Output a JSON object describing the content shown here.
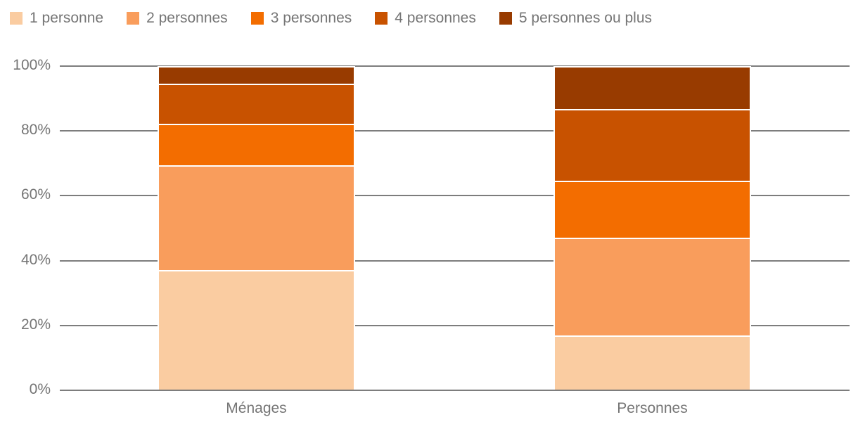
{
  "chart_data": {
    "type": "bar",
    "stacked": true,
    "stack_mode": "percent",
    "title": "",
    "xlabel": "",
    "ylabel": "",
    "categories": [
      "Ménages",
      "Personnes"
    ],
    "series": [
      {
        "name": "1 personne",
        "color": "#FACCA1",
        "values": [
          37.1,
          16.9
        ]
      },
      {
        "name": "2 personnes",
        "color": "#F99D5C",
        "values": [
          32.3,
          30.2
        ]
      },
      {
        "name": "3 personnes",
        "color": "#F36D00",
        "values": [
          12.8,
          17.5
        ]
      },
      {
        "name": "4 personnes",
        "color": "#C85200",
        "values": [
          12.4,
          22.1
        ]
      },
      {
        "name": "5 personnes ou plus",
        "color": "#983B00",
        "values": [
          5.4,
          13.3
        ]
      }
    ],
    "ylim": [
      0,
      100
    ],
    "yticks": [
      0,
      20,
      40,
      60,
      80,
      100
    ],
    "ytick_suffix": "%",
    "grid": true,
    "legend_position": "top",
    "colors": {
      "axis_text": "#757575",
      "gridline": "#7D7D7D",
      "segment_separator": "#FFFFFF",
      "background": "#FFFFFF"
    }
  }
}
